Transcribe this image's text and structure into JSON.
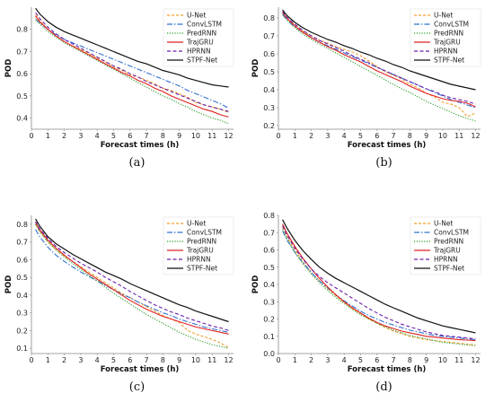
{
  "chart_data": [
    {
      "type": "line",
      "panel_label": "(a)",
      "xlabel": "Forecast times (h)",
      "ylabel": "POD",
      "xlim": [
        0,
        12.3
      ],
      "ylim": [
        0.35,
        0.9
      ],
      "x_ticks": [
        "0",
        "1",
        "2",
        "3",
        "4",
        "5",
        "6",
        "7",
        "8",
        "9",
        "10",
        "11",
        "12"
      ],
      "y_ticks": [
        "0.4",
        "0.5",
        "0.6",
        "0.7",
        "0.8"
      ],
      "legend_position": "top-right",
      "x": [
        0.25,
        0.5,
        1,
        1.5,
        2,
        2.5,
        3,
        3.5,
        4,
        4.5,
        5,
        5.5,
        6,
        6.5,
        7,
        7.5,
        8,
        8.5,
        9,
        9.5,
        10,
        10.5,
        11,
        11.5,
        12
      ],
      "series": [
        {
          "name": "U-Net",
          "values": [
            0.865,
            0.84,
            0.8,
            0.77,
            0.745,
            0.725,
            0.71,
            0.69,
            0.67,
            0.655,
            0.63,
            0.615,
            0.595,
            0.585,
            0.57,
            0.555,
            0.535,
            0.525,
            0.51,
            0.495,
            0.47,
            0.46,
            0.45,
            0.44,
            0.425
          ]
        },
        {
          "name": "ConvLSTM",
          "values": [
            0.845,
            0.83,
            0.8,
            0.775,
            0.755,
            0.74,
            0.725,
            0.71,
            0.695,
            0.68,
            0.665,
            0.65,
            0.635,
            0.62,
            0.605,
            0.59,
            0.575,
            0.56,
            0.545,
            0.525,
            0.51,
            0.495,
            0.48,
            0.465,
            0.445
          ]
        },
        {
          "name": "PredRNN",
          "values": [
            0.845,
            0.825,
            0.79,
            0.765,
            0.74,
            0.72,
            0.7,
            0.68,
            0.66,
            0.64,
            0.62,
            0.6,
            0.58,
            0.56,
            0.54,
            0.52,
            0.5,
            0.485,
            0.465,
            0.45,
            0.43,
            0.415,
            0.4,
            0.39,
            0.375
          ]
        },
        {
          "name": "TrajGRU",
          "values": [
            0.86,
            0.835,
            0.8,
            0.77,
            0.745,
            0.725,
            0.705,
            0.685,
            0.665,
            0.645,
            0.625,
            0.605,
            0.59,
            0.57,
            0.555,
            0.535,
            0.52,
            0.5,
            0.485,
            0.47,
            0.455,
            0.44,
            0.43,
            0.415,
            0.405
          ]
        },
        {
          "name": "HPRNN",
          "values": [
            0.875,
            0.85,
            0.81,
            0.78,
            0.755,
            0.735,
            0.715,
            0.695,
            0.675,
            0.655,
            0.635,
            0.62,
            0.6,
            0.585,
            0.565,
            0.55,
            0.535,
            0.52,
            0.505,
            0.49,
            0.475,
            0.46,
            0.45,
            0.44,
            0.43
          ]
        },
        {
          "name": "STPF-Net",
          "values": [
            0.895,
            0.87,
            0.835,
            0.81,
            0.79,
            0.775,
            0.76,
            0.745,
            0.73,
            0.715,
            0.7,
            0.685,
            0.67,
            0.655,
            0.645,
            0.63,
            0.615,
            0.605,
            0.595,
            0.58,
            0.57,
            0.56,
            0.55,
            0.545,
            0.54
          ]
        }
      ]
    },
    {
      "type": "line",
      "panel_label": "(b)",
      "xlabel": "Forecast times (h)",
      "ylabel": "POD",
      "xlim": [
        0,
        12.3
      ],
      "ylim": [
        0.18,
        0.86
      ],
      "x_ticks": [
        "0",
        "1",
        "2",
        "3",
        "4",
        "5",
        "6",
        "7",
        "8",
        "9",
        "10",
        "11",
        "12"
      ],
      "y_ticks": [
        "0.2",
        "0.3",
        "0.4",
        "0.5",
        "0.6",
        "0.7",
        "0.8"
      ],
      "legend_position": "top-right",
      "x": [
        0.25,
        0.5,
        1,
        1.5,
        2,
        2.5,
        3,
        3.5,
        4,
        4.5,
        5,
        5.5,
        6,
        6.5,
        7,
        7.5,
        8,
        8.5,
        9,
        9.5,
        10,
        10.5,
        11,
        11.5,
        12
      ],
      "series": [
        {
          "name": "U-Net",
          "values": [
            0.83,
            0.8,
            0.76,
            0.725,
            0.7,
            0.675,
            0.66,
            0.64,
            0.625,
            0.61,
            0.59,
            0.56,
            0.53,
            0.5,
            0.48,
            0.46,
            0.43,
            0.41,
            0.38,
            0.36,
            0.33,
            0.32,
            0.3,
            0.25,
            0.27
          ]
        },
        {
          "name": "ConvLSTM",
          "values": [
            0.82,
            0.79,
            0.75,
            0.72,
            0.69,
            0.665,
            0.645,
            0.625,
            0.605,
            0.585,
            0.565,
            0.545,
            0.525,
            0.505,
            0.485,
            0.465,
            0.445,
            0.425,
            0.405,
            0.385,
            0.365,
            0.345,
            0.33,
            0.315,
            0.3
          ]
        },
        {
          "name": "PredRNN",
          "values": [
            0.82,
            0.79,
            0.745,
            0.71,
            0.68,
            0.655,
            0.63,
            0.605,
            0.58,
            0.555,
            0.53,
            0.505,
            0.48,
            0.455,
            0.43,
            0.405,
            0.385,
            0.36,
            0.335,
            0.315,
            0.295,
            0.275,
            0.255,
            0.24,
            0.225
          ]
        },
        {
          "name": "TrajGRU",
          "values": [
            0.83,
            0.8,
            0.755,
            0.72,
            0.69,
            0.665,
            0.64,
            0.62,
            0.595,
            0.575,
            0.555,
            0.53,
            0.505,
            0.485,
            0.465,
            0.445,
            0.42,
            0.4,
            0.38,
            0.365,
            0.35,
            0.34,
            0.335,
            0.325,
            0.305
          ]
        },
        {
          "name": "HPRNN",
          "values": [
            0.835,
            0.805,
            0.765,
            0.73,
            0.7,
            0.675,
            0.655,
            0.635,
            0.615,
            0.59,
            0.57,
            0.55,
            0.525,
            0.505,
            0.485,
            0.465,
            0.445,
            0.425,
            0.405,
            0.39,
            0.37,
            0.355,
            0.345,
            0.335,
            0.32
          ]
        },
        {
          "name": "STPF-Net",
          "values": [
            0.845,
            0.815,
            0.775,
            0.745,
            0.72,
            0.7,
            0.68,
            0.665,
            0.645,
            0.63,
            0.61,
            0.595,
            0.575,
            0.56,
            0.54,
            0.525,
            0.505,
            0.49,
            0.475,
            0.46,
            0.445,
            0.43,
            0.42,
            0.41,
            0.4
          ]
        }
      ]
    },
    {
      "type": "line",
      "panel_label": "(c)",
      "xlabel": "Forecast times (h)",
      "ylabel": "POD",
      "xlim": [
        0,
        12.3
      ],
      "ylim": [
        0.07,
        0.85
      ],
      "x_ticks": [
        "0",
        "1",
        "2",
        "3",
        "4",
        "5",
        "6",
        "7",
        "8",
        "9",
        "10",
        "11",
        "12"
      ],
      "y_ticks": [
        "0.1",
        "0.2",
        "0.3",
        "0.4",
        "0.5",
        "0.6",
        "0.7",
        "0.8"
      ],
      "legend_position": "top-right",
      "x": [
        0.25,
        0.5,
        1,
        1.5,
        2,
        2.5,
        3,
        3.5,
        4,
        4.5,
        5,
        5.5,
        6,
        6.5,
        7,
        7.5,
        8,
        8.5,
        9,
        9.5,
        10,
        10.5,
        11,
        11.5,
        12
      ],
      "series": [
        {
          "name": "U-Net",
          "values": [
            0.8,
            0.76,
            0.7,
            0.655,
            0.62,
            0.59,
            0.56,
            0.53,
            0.5,
            0.47,
            0.44,
            0.41,
            0.385,
            0.36,
            0.335,
            0.31,
            0.285,
            0.265,
            0.245,
            0.2,
            0.18,
            0.165,
            0.15,
            0.13,
            0.105
          ]
        },
        {
          "name": "ConvLSTM",
          "values": [
            0.77,
            0.73,
            0.67,
            0.625,
            0.59,
            0.56,
            0.53,
            0.505,
            0.48,
            0.455,
            0.43,
            0.405,
            0.385,
            0.36,
            0.34,
            0.32,
            0.3,
            0.285,
            0.265,
            0.25,
            0.235,
            0.22,
            0.21,
            0.2,
            0.19
          ]
        },
        {
          "name": "PredRNN",
          "values": [
            0.8,
            0.76,
            0.7,
            0.655,
            0.615,
            0.58,
            0.545,
            0.51,
            0.48,
            0.445,
            0.41,
            0.38,
            0.35,
            0.32,
            0.29,
            0.265,
            0.24,
            0.215,
            0.19,
            0.17,
            0.15,
            0.135,
            0.12,
            0.11,
            0.1
          ]
        },
        {
          "name": "TrajGRU",
          "values": [
            0.81,
            0.77,
            0.71,
            0.665,
            0.625,
            0.59,
            0.555,
            0.52,
            0.49,
            0.46,
            0.43,
            0.4,
            0.37,
            0.345,
            0.32,
            0.3,
            0.28,
            0.265,
            0.25,
            0.235,
            0.22,
            0.21,
            0.2,
            0.19,
            0.18
          ]
        },
        {
          "name": "HPRNN",
          "values": [
            0.815,
            0.775,
            0.72,
            0.675,
            0.64,
            0.61,
            0.58,
            0.555,
            0.53,
            0.5,
            0.475,
            0.45,
            0.42,
            0.395,
            0.37,
            0.345,
            0.325,
            0.305,
            0.29,
            0.27,
            0.255,
            0.24,
            0.225,
            0.215,
            0.2
          ]
        },
        {
          "name": "STPF-Net",
          "values": [
            0.83,
            0.79,
            0.73,
            0.69,
            0.66,
            0.63,
            0.605,
            0.58,
            0.555,
            0.53,
            0.51,
            0.49,
            0.465,
            0.445,
            0.425,
            0.405,
            0.385,
            0.365,
            0.345,
            0.33,
            0.31,
            0.295,
            0.28,
            0.265,
            0.25
          ]
        }
      ]
    },
    {
      "type": "line",
      "panel_label": "(d)",
      "xlabel": "Forecast times (h)",
      "ylabel": "POD",
      "xlim": [
        0,
        12.3
      ],
      "ylim": [
        0.0,
        0.8
      ],
      "x_ticks": [
        "0",
        "1",
        "2",
        "3",
        "4",
        "5",
        "6",
        "7",
        "8",
        "9",
        "10",
        "11",
        "12"
      ],
      "y_ticks": [
        "0.0",
        "0.1",
        "0.2",
        "0.3",
        "0.4",
        "0.5",
        "0.6",
        "0.7",
        "0.8"
      ],
      "legend_position": "top-right",
      "x": [
        0.25,
        0.5,
        1,
        1.5,
        2,
        2.5,
        3,
        3.5,
        4,
        4.5,
        5,
        5.5,
        6,
        6.5,
        7,
        7.5,
        8,
        8.5,
        9,
        9.5,
        10,
        10.5,
        11,
        11.5,
        12
      ],
      "series": [
        {
          "name": "U-Net",
          "values": [
            0.73,
            0.68,
            0.6,
            0.53,
            0.47,
            0.42,
            0.375,
            0.335,
            0.295,
            0.26,
            0.23,
            0.2,
            0.175,
            0.15,
            0.13,
            0.115,
            0.1,
            0.09,
            0.08,
            0.075,
            0.07,
            0.065,
            0.06,
            0.055,
            0.05
          ]
        },
        {
          "name": "ConvLSTM",
          "values": [
            0.71,
            0.66,
            0.585,
            0.525,
            0.47,
            0.42,
            0.38,
            0.34,
            0.305,
            0.275,
            0.245,
            0.22,
            0.2,
            0.18,
            0.165,
            0.15,
            0.135,
            0.125,
            0.115,
            0.105,
            0.1,
            0.095,
            0.09,
            0.085,
            0.08
          ]
        },
        {
          "name": "PredRNN",
          "values": [
            0.72,
            0.67,
            0.585,
            0.52,
            0.46,
            0.41,
            0.365,
            0.325,
            0.29,
            0.255,
            0.225,
            0.2,
            0.175,
            0.155,
            0.135,
            0.12,
            0.105,
            0.095,
            0.085,
            0.075,
            0.065,
            0.06,
            0.055,
            0.05,
            0.045
          ]
        },
        {
          "name": "TrajGRU",
          "values": [
            0.75,
            0.7,
            0.62,
            0.55,
            0.49,
            0.435,
            0.385,
            0.34,
            0.3,
            0.265,
            0.235,
            0.205,
            0.18,
            0.16,
            0.145,
            0.13,
            0.12,
            0.11,
            0.1,
            0.095,
            0.09,
            0.085,
            0.08,
            0.078,
            0.075
          ]
        },
        {
          "name": "HPRNN",
          "values": [
            0.74,
            0.69,
            0.61,
            0.545,
            0.49,
            0.445,
            0.41,
            0.38,
            0.35,
            0.32,
            0.29,
            0.26,
            0.235,
            0.21,
            0.19,
            0.17,
            0.155,
            0.14,
            0.125,
            0.115,
            0.105,
            0.1,
            0.095,
            0.09,
            0.085
          ]
        },
        {
          "name": "STPF-Net",
          "values": [
            0.775,
            0.73,
            0.655,
            0.595,
            0.545,
            0.5,
            0.465,
            0.435,
            0.41,
            0.385,
            0.36,
            0.335,
            0.31,
            0.285,
            0.265,
            0.245,
            0.225,
            0.205,
            0.19,
            0.175,
            0.16,
            0.15,
            0.14,
            0.13,
            0.12
          ]
        }
      ]
    }
  ],
  "styles": {
    "U-Net": {
      "color": "#f0a030",
      "dash": "3,2"
    },
    "ConvLSTM": {
      "color": "#3070d0",
      "dash": "6,2,1.5,2"
    },
    "PredRNN": {
      "color": "#2a9a2a",
      "dash": "1.2,1.6"
    },
    "TrajGRU": {
      "color": "#e02020",
      "dash": ""
    },
    "HPRNN": {
      "color": "#6a1fa8",
      "dash": "4,2.5"
    },
    "STPF-Net": {
      "color": "#111111",
      "dash": ""
    }
  }
}
